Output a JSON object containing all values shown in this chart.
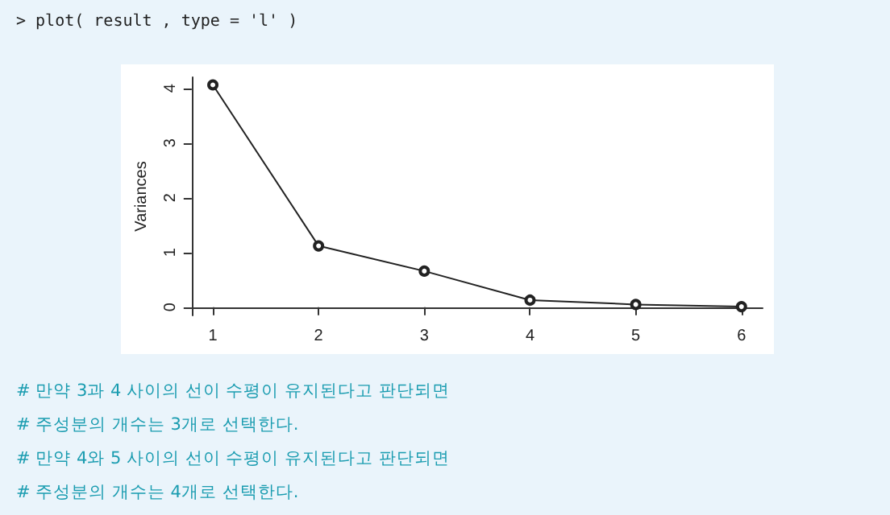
{
  "chart_data": {
    "type": "line",
    "title": "> plot( result , type = 'l' )",
    "ylabel": "Variances",
    "x": [
      1,
      2,
      3,
      4,
      5,
      6
    ],
    "series": [
      {
        "color": "#222222",
        "values": [
          4.06,
          1.12,
          0.66,
          0.13,
          0.05,
          0.01
        ]
      }
    ],
    "xlim": [
      0.8,
      6.2
    ],
    "xticks": [
      1,
      2,
      3,
      4,
      5,
      6
    ],
    "ylim": [
      -0.15,
      4.2
    ],
    "yticks": [
      0,
      1,
      2,
      3,
      4
    ],
    "grid": false,
    "marker": "circle",
    "line_style": "solid",
    "annotations": [
      "#  만약 3과 4 사이의 선이 수평이 유지된다고 판단되면",
      "#  주성분의 개수는 3개로 선택한다.",
      "#  만약 4와 5 사이의 선이 수평이 유지된다고 판단되면",
      "#  주성분의 개수는 4개로 선택한다."
    ]
  }
}
